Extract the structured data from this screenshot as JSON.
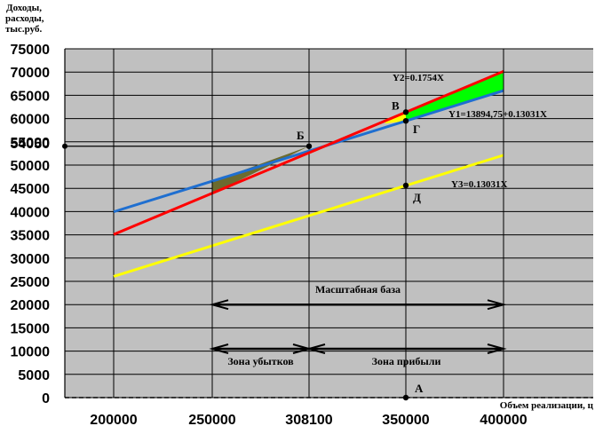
{
  "chart_data": {
    "type": "line",
    "ylabel_lines": [
      "Доходы,",
      "расходы,",
      "тыс.руб."
    ],
    "xlabel": "Объем реализации, ц",
    "xlim": [
      180000,
      410000
    ],
    "ylim": [
      0,
      75000
    ],
    "x_ticks": [
      200000,
      250000,
      308100,
      350000,
      400000
    ],
    "x_tick_labels": [
      "200000",
      "250000",
      "308100",
      "350000",
      "400000"
    ],
    "y_ticks": [
      0,
      5000,
      10000,
      15000,
      20000,
      25000,
      30000,
      35000,
      40000,
      45000,
      50000,
      55000,
      60000,
      65000,
      70000,
      75000
    ],
    "y_tick_labels": [
      "0",
      "5000",
      "10000",
      "15000",
      "20000",
      "25000",
      "30000",
      "35000",
      "40000",
      "45000",
      "50000",
      "55000",
      "60000",
      "65000",
      "70000",
      "75000"
    ],
    "extra_y_label": {
      "value": 54050,
      "text": "54050"
    },
    "grid": true,
    "series": [
      {
        "name": "Y2=0.1754X",
        "color": "#ff0000",
        "x": [
          200000,
          400000
        ],
        "y": [
          35080,
          70160
        ]
      },
      {
        "name": "Y1=13894,75+0.13031X",
        "color": "#1f6fd0",
        "x": [
          200000,
          400000
        ],
        "y": [
          39957,
          66019
        ]
      },
      {
        "name": "Y3=0.13031X",
        "color": "#ffff00",
        "x": [
          200000,
          400000
        ],
        "y": [
          26062,
          52124
        ]
      }
    ],
    "points": [
      {
        "label": "Б",
        "x": 308100,
        "y": 54050
      },
      {
        "label": "В",
        "x": 350000,
        "y": 61390
      },
      {
        "label": "Г",
        "x": 350000,
        "y": 59504
      },
      {
        "label": "Д",
        "x": 350000,
        "y": 45609
      },
      {
        "label": "А",
        "x": 350000,
        "y": 0
      }
    ],
    "loss_zone_fill": "#6b6b2f",
    "profit_zone_fill": "#00ff00",
    "spans": [
      {
        "text": "Масштабная база",
        "x1": 250000,
        "x2": 400000,
        "y": 20000
      },
      {
        "text": "Зона убытков",
        "x1": 250000,
        "x2": 308100,
        "y": 10500
      },
      {
        "text": "Зона прибыли",
        "x1": 308100,
        "x2": 400000,
        "y": 10500
      }
    ]
  }
}
